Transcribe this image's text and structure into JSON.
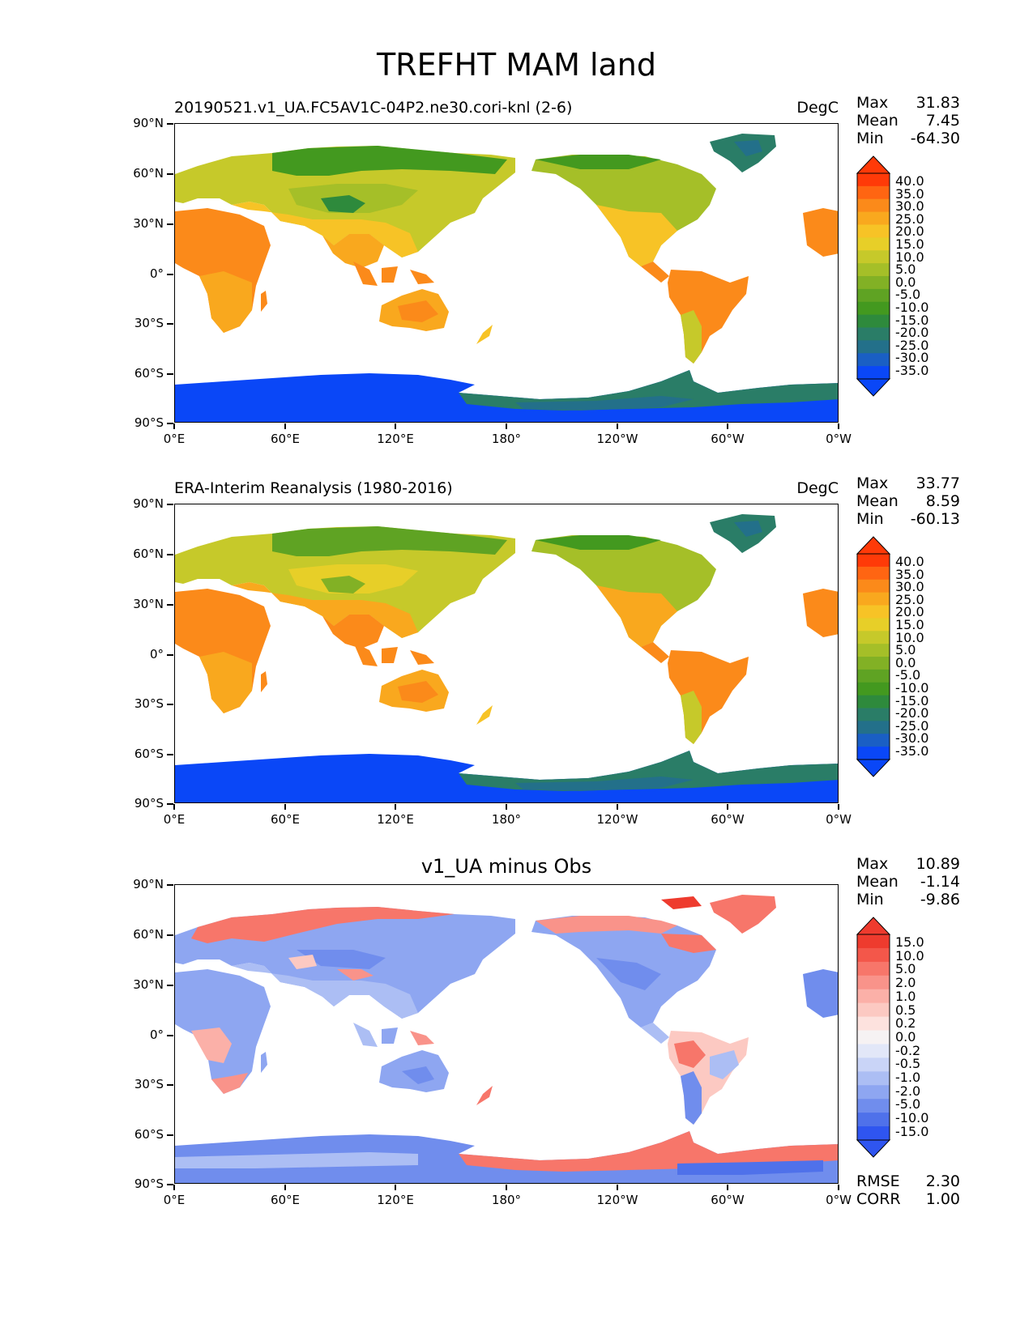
{
  "figure": {
    "title": "TREFHT MAM land",
    "axes": {
      "yticks": [
        "90°N",
        "60°N",
        "30°N",
        "0°",
        "30°S",
        "60°S",
        "90°S"
      ],
      "xticks": [
        "0°E",
        "60°E",
        "120°E",
        "180°",
        "120°W",
        "60°W",
        "0°W"
      ]
    }
  },
  "panels": [
    {
      "title_left": "20190521.v1_UA.FC5AV1C-04P2.ne30.cori-knl (2-6)",
      "title_right": "DegC",
      "title_center": "",
      "stats": [
        {
          "label": "Max",
          "value": "31.83"
        },
        {
          "label": "Mean",
          "value": "7.45"
        },
        {
          "label": "Min",
          "value": "-64.30"
        }
      ],
      "colorbar": {
        "ticks": [
          "40.0",
          "35.0",
          "30.0",
          "25.0",
          "20.0",
          "15.0",
          "10.0",
          "5.0",
          "0.0",
          "-5.0",
          "-10.0",
          "-15.0",
          "-20.0",
          "-25.0",
          "-30.0",
          "-35.0"
        ],
        "colors": [
          "#ff3a08",
          "#ff6512",
          "#fb8a1a",
          "#f9a81e",
          "#f7c326",
          "#e7cf28",
          "#c6c92a",
          "#a5bf28",
          "#82b125",
          "#5fa323",
          "#43991f",
          "#2e8a3c",
          "#2a7d67",
          "#23708a",
          "#1a5fc4",
          "#0a47f7"
        ]
      },
      "extra_stats": []
    },
    {
      "title_left": "ERA-Interim Reanalysis (1980-2016)",
      "title_right": "DegC",
      "title_center": "",
      "stats": [
        {
          "label": "Max",
          "value": "33.77"
        },
        {
          "label": "Mean",
          "value": "8.59"
        },
        {
          "label": "Min",
          "value": "-60.13"
        }
      ],
      "colorbar": {
        "ticks": [
          "40.0",
          "35.0",
          "30.0",
          "25.0",
          "20.0",
          "15.0",
          "10.0",
          "5.0",
          "0.0",
          "-5.0",
          "-10.0",
          "-15.0",
          "-20.0",
          "-25.0",
          "-30.0",
          "-35.0"
        ],
        "colors": [
          "#ff3a08",
          "#ff6512",
          "#fb8a1a",
          "#f9a81e",
          "#f7c326",
          "#e7cf28",
          "#c6c92a",
          "#a5bf28",
          "#82b125",
          "#5fa323",
          "#43991f",
          "#2e8a3c",
          "#2a7d67",
          "#23708a",
          "#1a5fc4",
          "#0a47f7"
        ]
      },
      "extra_stats": []
    },
    {
      "title_left": "",
      "title_right": "",
      "title_center": "v1_UA minus Obs",
      "stats": [
        {
          "label": "Max",
          "value": "10.89"
        },
        {
          "label": "Mean",
          "value": "-1.14"
        },
        {
          "label": "Min",
          "value": "-9.86"
        }
      ],
      "colorbar": {
        "ticks": [
          "15.0",
          "10.0",
          "5.0",
          "2.0",
          "1.0",
          "0.5",
          "0.2",
          "0.0",
          "-0.2",
          "-0.5",
          "-1.0",
          "-2.0",
          "-5.0",
          "-10.0",
          "-15.0"
        ],
        "colors": [
          "#ee3b2e",
          "#f3574a",
          "#f7766a",
          "#f9938a",
          "#fbb0a8",
          "#fcc9c2",
          "#fde2de",
          "#f6f2f3",
          "#e2e7f8",
          "#c9d4f7",
          "#acbef4",
          "#8ea6f1",
          "#708ded",
          "#4f71ea",
          "#2f55f0"
        ]
      },
      "extra_stats": [
        {
          "label": "RMSE",
          "value": "2.30"
        },
        {
          "label": "CORR",
          "value": "1.00"
        }
      ]
    }
  ]
}
